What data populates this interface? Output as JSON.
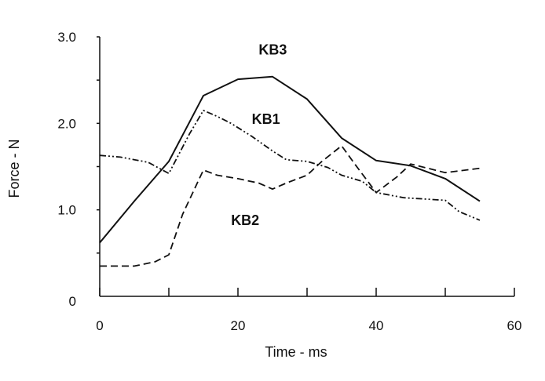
{
  "chart_data": {
    "type": "line",
    "xlabel": "Time - ms",
    "ylabel": "Force - N",
    "xlim": [
      0,
      60
    ],
    "ylim": [
      0,
      3
    ],
    "x_ticks": [
      0,
      20,
      40,
      60
    ],
    "x_tick_labels": [
      "0",
      "20",
      "40",
      "60"
    ],
    "x_minor_ticks": [
      10,
      30,
      50
    ],
    "y_ticks": [
      0,
      1,
      2,
      3
    ],
    "y_tick_labels": [
      "0",
      "1.0",
      "2.0",
      "3.0"
    ],
    "y_minor_ticks": [
      0.5,
      1.5,
      2.5
    ],
    "grid": false,
    "series": [
      {
        "name": "KB3",
        "style": "solid",
        "label_pos": [
          23,
          2.85
        ],
        "x": [
          0,
          5,
          10,
          15,
          20,
          25,
          30,
          35,
          40,
          45,
          50,
          55
        ],
        "y": [
          0.62,
          1.1,
          1.56,
          2.32,
          2.51,
          2.54,
          2.28,
          1.83,
          1.57,
          1.51,
          1.36,
          1.1
        ]
      },
      {
        "name": "KB1",
        "style": "dash-dot-dot",
        "label_pos": [
          22,
          2.05
        ],
        "x": [
          0,
          3,
          5,
          7,
          10,
          13,
          15,
          17,
          19,
          22,
          25,
          27,
          30,
          33,
          35,
          38,
          40,
          44,
          48,
          50,
          52,
          55
        ],
        "y": [
          1.63,
          1.61,
          1.58,
          1.55,
          1.42,
          1.88,
          2.15,
          2.08,
          2.0,
          1.85,
          1.68,
          1.58,
          1.56,
          1.49,
          1.4,
          1.33,
          1.2,
          1.14,
          1.12,
          1.11,
          0.98,
          0.88
        ]
      },
      {
        "name": "KB2",
        "style": "dashed",
        "label_pos": [
          19,
          0.88
        ],
        "x": [
          0,
          5,
          8,
          10,
          12,
          15,
          17,
          20,
          23,
          25,
          27,
          30,
          32,
          35,
          37,
          40,
          43,
          45,
          50,
          55
        ],
        "y": [
          0.35,
          0.35,
          0.4,
          0.48,
          0.95,
          1.46,
          1.4,
          1.36,
          1.31,
          1.24,
          1.31,
          1.4,
          1.55,
          1.74,
          1.52,
          1.2,
          1.38,
          1.53,
          1.43,
          1.48
        ]
      }
    ]
  }
}
